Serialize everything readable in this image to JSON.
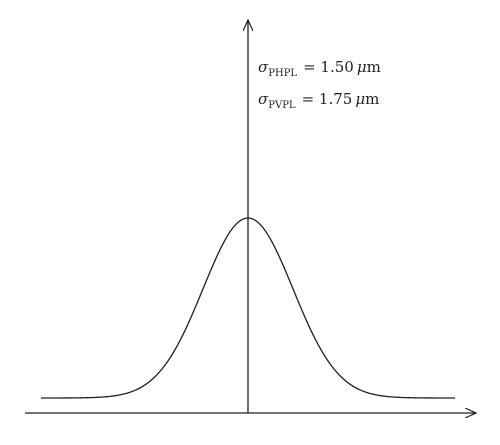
{
  "diagram": {
    "curve": {
      "type": "gaussian",
      "mean": 0,
      "x_range": [
        -4.6,
        4.6
      ]
    },
    "colors": {
      "stroke": "#231f20",
      "background": "#ffffff"
    },
    "annotations": [
      {
        "symbol": "σ",
        "subscript": "PHPL",
        "value": "= 1.50",
        "unit_prefix": "μ",
        "unit": "m"
      },
      {
        "symbol": "σ",
        "subscript": "PVPL",
        "value": "= 1.75",
        "unit_prefix": "μ",
        "unit": "m"
      }
    ]
  }
}
